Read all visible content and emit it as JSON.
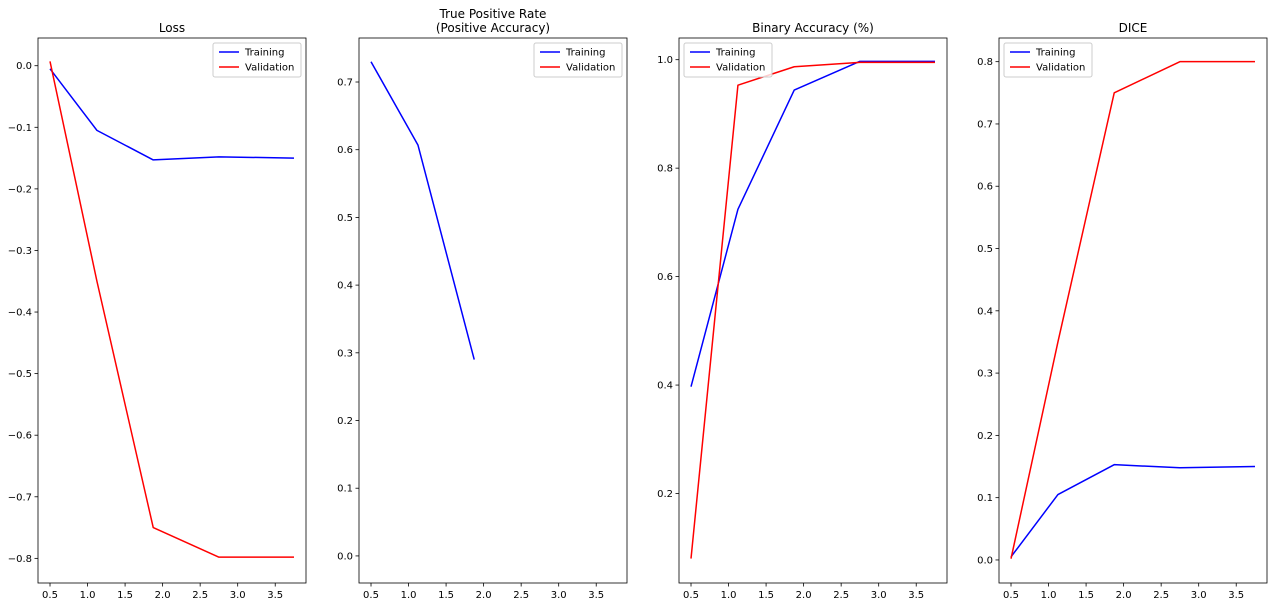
{
  "figure": {
    "background": "#ffffff",
    "axis_color": "#000000"
  },
  "series_colors": {
    "Training": "#0000ff",
    "Validation": "#ff0000"
  },
  "chart_data": [
    {
      "type": "line",
      "title": [
        "Loss"
      ],
      "xlabel": "",
      "ylabel": "",
      "grid": false,
      "legend_position": "top-right",
      "xlim": [
        0.34,
        3.91
      ],
      "ylim": [
        -0.84,
        0.045
      ],
      "xticks": [
        0.5,
        1.0,
        1.5,
        2.0,
        2.5,
        3.0,
        3.5
      ],
      "xtick_labels": [
        "0.5",
        "1.0",
        "1.5",
        "2.0",
        "2.5",
        "3.0",
        "3.5"
      ],
      "yticks": [
        0.0,
        -0.1,
        -0.2,
        -0.3,
        -0.4,
        -0.5,
        -0.6,
        -0.7,
        -0.8
      ],
      "ytick_labels": [
        "0.0",
        "−0.1",
        "−0.2",
        "−0.3",
        "−0.4",
        "−0.5",
        "−0.6",
        "−0.7",
        "−0.8"
      ],
      "series": [
        {
          "name": "Training",
          "x": [
            0.5,
            1.125,
            1.875,
            2.75,
            3.75
          ],
          "values": [
            -0.005,
            -0.105,
            -0.153,
            -0.148,
            -0.15
          ]
        },
        {
          "name": "Validation",
          "x": [
            0.5,
            1.125,
            1.875,
            2.75,
            3.75
          ],
          "values": [
            0.007,
            -0.35,
            -0.75,
            -0.798,
            -0.798
          ]
        }
      ]
    },
    {
      "type": "line",
      "title": [
        "True Positive Rate",
        "(Positive Accuracy)"
      ],
      "xlabel": "",
      "ylabel": "",
      "grid": false,
      "legend_position": "top-right",
      "xlim": [
        0.34,
        3.91
      ],
      "ylim": [
        -0.04,
        0.765
      ],
      "xticks": [
        0.5,
        1.0,
        1.5,
        2.0,
        2.5,
        3.0,
        3.5
      ],
      "xtick_labels": [
        "0.5",
        "1.0",
        "1.5",
        "2.0",
        "2.5",
        "3.0",
        "3.5"
      ],
      "yticks": [
        0.0,
        0.1,
        0.2,
        0.3,
        0.4,
        0.5,
        0.6,
        0.7
      ],
      "ytick_labels": [
        "0.0",
        "0.1",
        "0.2",
        "0.3",
        "0.4",
        "0.5",
        "0.6",
        "0.7"
      ],
      "series": [
        {
          "name": "Training",
          "x": [
            0.5,
            1.125,
            1.875
          ],
          "values": [
            0.73,
            0.607,
            0.29
          ]
        },
        {
          "name": "Validation",
          "x": [],
          "values": []
        }
      ]
    },
    {
      "type": "line",
      "title": [
        "Binary Accuracy (%)"
      ],
      "xlabel": "",
      "ylabel": "",
      "grid": false,
      "legend_position": "top-left",
      "xlim": [
        0.34,
        3.91
      ],
      "ylim": [
        0.035,
        1.04
      ],
      "xticks": [
        0.5,
        1.0,
        1.5,
        2.0,
        2.5,
        3.0,
        3.5
      ],
      "xtick_labels": [
        "0.5",
        "1.0",
        "1.5",
        "2.0",
        "2.5",
        "3.0",
        "3.5"
      ],
      "yticks": [
        0.2,
        0.4,
        0.6,
        0.8,
        1.0
      ],
      "ytick_labels": [
        "0.2",
        "0.4",
        "0.6",
        "0.8",
        "1.0"
      ],
      "series": [
        {
          "name": "Training",
          "x": [
            0.5,
            1.125,
            1.875,
            2.75,
            3.75
          ],
          "values": [
            0.397,
            0.724,
            0.944,
            0.997,
            0.997
          ]
        },
        {
          "name": "Validation",
          "x": [
            0.5,
            1.125,
            1.875,
            2.75,
            3.75
          ],
          "values": [
            0.08,
            0.953,
            0.987,
            0.995,
            0.995
          ]
        }
      ]
    },
    {
      "type": "line",
      "title": [
        "DICE"
      ],
      "xlabel": "",
      "ylabel": "",
      "grid": false,
      "legend_position": "top-left",
      "xlim": [
        0.34,
        3.91
      ],
      "ylim": [
        -0.037,
        0.838
      ],
      "xticks": [
        0.5,
        1.0,
        1.5,
        2.0,
        2.5,
        3.0,
        3.5
      ],
      "xtick_labels": [
        "0.5",
        "1.0",
        "1.5",
        "2.0",
        "2.5",
        "3.0",
        "3.5"
      ],
      "yticks": [
        0.0,
        0.1,
        0.2,
        0.3,
        0.4,
        0.5,
        0.6,
        0.7,
        0.8
      ],
      "ytick_labels": [
        "0.0",
        "0.1",
        "0.2",
        "0.3",
        "0.4",
        "0.5",
        "0.6",
        "0.7",
        "0.8"
      ],
      "series": [
        {
          "name": "Training",
          "x": [
            0.5,
            1.125,
            1.875,
            2.75,
            3.75
          ],
          "values": [
            0.005,
            0.105,
            0.153,
            0.148,
            0.15
          ]
        },
        {
          "name": "Validation",
          "x": [
            0.5,
            1.125,
            1.875,
            2.75,
            3.75
          ],
          "values": [
            0.002,
            0.35,
            0.75,
            0.8,
            0.8
          ]
        }
      ]
    }
  ]
}
